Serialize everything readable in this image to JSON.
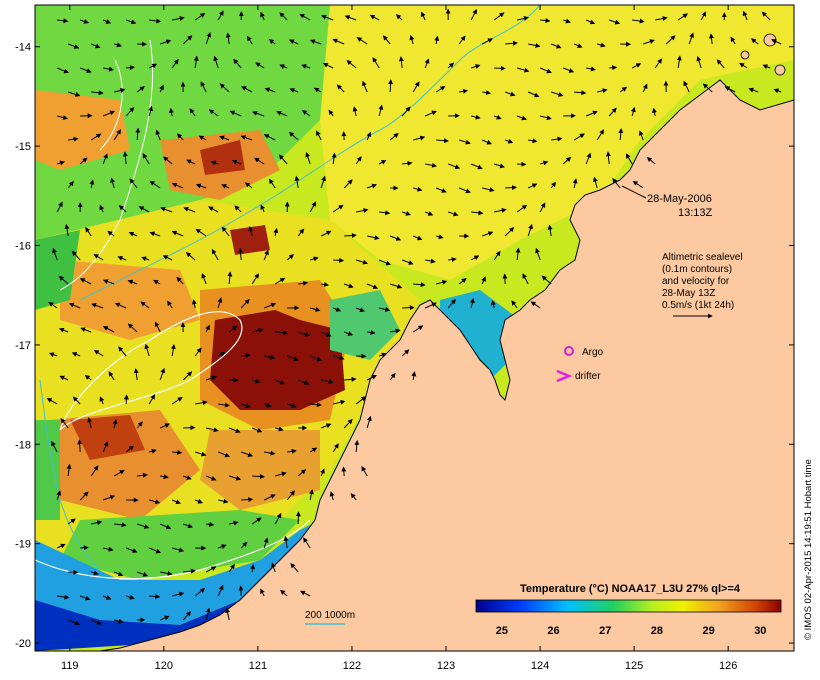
{
  "map": {
    "lat_ticks": [
      "-14",
      "-15",
      "-16",
      "-17",
      "-18",
      "-19",
      "-20"
    ],
    "lon_ticks": [
      "119",
      "120",
      "121",
      "122",
      "123",
      "124",
      "125",
      "126"
    ],
    "lon_range": [
      118.63,
      126.7
    ],
    "lat_range": [
      -20.08,
      -13.58
    ]
  },
  "annotations": {
    "date_line1": "28-May-2006",
    "date_line2": "13:13Z",
    "alt_line1": "Altimetric sealevel",
    "alt_line2": "(0.1m contours)",
    "alt_line3": "and velocity for",
    "alt_line4": "28-May 13Z",
    "alt_line5": "0.5m/s (1kt 24h)",
    "argo_label": "Argo",
    "drifter_label": "drifter",
    "depth_label": "200  1000m",
    "credit": "© IMOS 02-Apr-2015 14:19:51 Hobart time"
  },
  "colorbar": {
    "title": "Temperature (°C) NOAA17_L3U 27% ql>=4",
    "ticks": [
      "25",
      "26",
      "27",
      "28",
      "29",
      "30"
    ],
    "range": [
      24.5,
      30.4
    ]
  },
  "colors": {
    "land": "#fcc9a0",
    "argo": "#d020d0",
    "drifter": "#e020e0",
    "contour": "#ffffff",
    "bathy_200": "#40c0d0"
  }
}
